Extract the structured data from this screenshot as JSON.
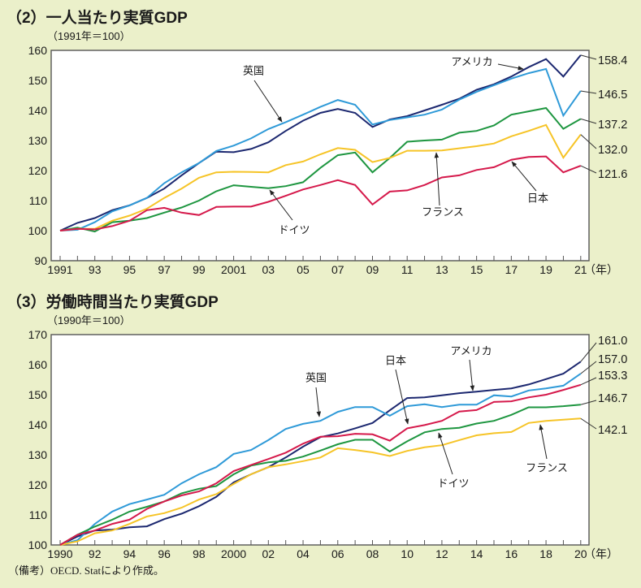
{
  "footer": {
    "note": "（備考）OECD. Statにより作成。"
  },
  "chart_data": [
    {
      "type": "line",
      "title": "（2）一人当たり実質GDP",
      "subtitle": "（1991年＝100）",
      "xlabel": "（年）",
      "ylabel": "",
      "x": [
        1991,
        1992,
        1993,
        1994,
        1995,
        1996,
        1997,
        1998,
        1999,
        2000,
        2001,
        2002,
        2003,
        2004,
        2005,
        2006,
        2007,
        2008,
        2009,
        2010,
        2011,
        2012,
        2013,
        2014,
        2015,
        2016,
        2017,
        2018,
        2019,
        2020,
        2021
      ],
      "xtick_values": [
        1991,
        1993,
        1995,
        1997,
        1999,
        2001,
        2003,
        2005,
        2007,
        2009,
        2011,
        2013,
        2015,
        2017,
        2019,
        2021
      ],
      "xtick_labels": [
        "1991",
        "93",
        "95",
        "97",
        "99",
        "2001",
        "03",
        "05",
        "07",
        "09",
        "11",
        "13",
        "15",
        "17",
        "19",
        "21"
      ],
      "ylim": [
        90,
        160
      ],
      "yticks": [
        90,
        100,
        110,
        120,
        130,
        140,
        150,
        160
      ],
      "grid": false,
      "legend": "inline annotations with arrows; end values labeled at right",
      "series": [
        {
          "name": "アメリカ",
          "color": "#1c2870",
          "end_label": "158.4",
          "values": [
            100,
            102.6,
            104.2,
            106.8,
            108.4,
            110.9,
            114.0,
            118.4,
            122.5,
            126.3,
            126.1,
            127.2,
            129.4,
            133.2,
            136.6,
            139.2,
            140.5,
            139.2,
            134.5,
            137.0,
            138.1,
            140.0,
            141.9,
            143.9,
            146.9,
            148.7,
            151.3,
            154.4,
            157.1,
            151.3,
            158.4
          ]
        },
        {
          "name": "英国",
          "color": "#2f9ad8",
          "end_label": "146.5",
          "values": [
            100,
            100.3,
            102.8,
            106.4,
            108.4,
            110.9,
            115.8,
            119.4,
            122.5,
            126.5,
            128.3,
            130.7,
            133.8,
            136.1,
            138.6,
            141.2,
            143.5,
            141.9,
            135.3,
            136.8,
            137.7,
            138.6,
            140.3,
            143.6,
            146.2,
            148.4,
            150.6,
            152.4,
            153.8,
            138.3,
            146.5
          ]
        },
        {
          "name": "ドイツ",
          "color": "#1e9640",
          "end_label": "137.2",
          "values": [
            100,
            101.0,
            99.7,
            102.8,
            103.3,
            104.2,
            106.0,
            107.7,
            110.0,
            113.1,
            115.1,
            114.6,
            114.1,
            114.8,
            116.1,
            120.9,
            125.1,
            126.0,
            119.4,
            124.2,
            129.6,
            130.0,
            130.3,
            132.6,
            133.2,
            135.0,
            138.6,
            139.7,
            140.8,
            133.9,
            137.2
          ]
        },
        {
          "name": "フランス",
          "color": "#f6c427",
          "end_label": "132.0",
          "values": [
            100,
            100.6,
            100.6,
            103.3,
            105.0,
            107.3,
            110.9,
            114.0,
            117.6,
            119.4,
            119.6,
            119.5,
            119.4,
            121.8,
            123.0,
            125.4,
            127.5,
            126.9,
            122.8,
            124.2,
            126.6,
            126.6,
            126.7,
            127.4,
            128.1,
            129.0,
            131.4,
            133.2,
            135.2,
            124.3,
            132.0
          ]
        },
        {
          "name": "日本",
          "color": "#d5194b",
          "end_label": "121.6",
          "values": [
            100,
            100.6,
            100.4,
            101.5,
            103.3,
            106.8,
            107.6,
            106.0,
            105.2,
            107.9,
            108.0,
            108.0,
            109.6,
            111.6,
            113.7,
            115.2,
            116.8,
            115.2,
            108.7,
            113.0,
            113.4,
            115.2,
            117.7,
            118.4,
            120.2,
            121.1,
            123.6,
            124.5,
            124.7,
            119.4,
            121.6
          ]
        }
      ]
    },
    {
      "type": "line",
      "title": "（3）労働時間当たり実質GDP",
      "subtitle": "（1990年＝100）",
      "xlabel": "（年）",
      "ylabel": "",
      "x": [
        1990,
        1991,
        1992,
        1993,
        1994,
        1995,
        1996,
        1997,
        1998,
        1999,
        2000,
        2001,
        2002,
        2003,
        2004,
        2005,
        2006,
        2007,
        2008,
        2009,
        2010,
        2011,
        2012,
        2013,
        2014,
        2015,
        2016,
        2017,
        2018,
        2019,
        2020
      ],
      "xtick_values": [
        1990,
        1992,
        1994,
        1996,
        1998,
        2000,
        2002,
        2004,
        2006,
        2008,
        2010,
        2012,
        2014,
        2016,
        2018,
        2020
      ],
      "xtick_labels": [
        "1990",
        "92",
        "94",
        "96",
        "98",
        "2000",
        "02",
        "04",
        "06",
        "08",
        "10",
        "12",
        "14",
        "16",
        "18",
        "20"
      ],
      "ylim": [
        100,
        170
      ],
      "yticks": [
        100,
        110,
        120,
        130,
        140,
        150,
        160,
        170
      ],
      "grid": false,
      "legend": "inline annotations with arrows; end values labeled at right",
      "series": [
        {
          "name": "アメリカ",
          "color": "#1c2870",
          "end_label": "161.0",
          "values": [
            100,
            102.8,
            104.8,
            105.1,
            105.9,
            106.2,
            108.6,
            110.4,
            112.9,
            116.0,
            120.8,
            123.5,
            125.9,
            129.1,
            132.7,
            135.9,
            137.1,
            138.8,
            140.6,
            144.8,
            148.9,
            149.1,
            149.8,
            150.5,
            151.0,
            151.6,
            152.1,
            153.4,
            155.2,
            157.0,
            161.0
          ]
        },
        {
          "name": "英国",
          "color": "#2f9ad8",
          "end_label": "157.0",
          "values": [
            100,
            101.6,
            107.0,
            111.1,
            113.6,
            115.1,
            116.7,
            120.5,
            123.5,
            125.9,
            130.3,
            131.6,
            134.9,
            138.6,
            140.3,
            141.3,
            144.3,
            145.9,
            145.9,
            143.0,
            146.2,
            146.8,
            145.9,
            146.7,
            146.7,
            149.8,
            149.4,
            151.4,
            152.1,
            153.0,
            157.0
          ]
        },
        {
          "name": "ドイツ",
          "color": "#1e9640",
          "end_label": "146.7",
          "values": [
            100,
            103.4,
            106.1,
            108.4,
            111.1,
            112.7,
            114.5,
            117.2,
            118.7,
            119.6,
            123.5,
            126.4,
            127.5,
            128.0,
            129.4,
            131.4,
            133.5,
            135.0,
            135.0,
            131.1,
            134.5,
            137.5,
            138.6,
            139.0,
            140.4,
            141.3,
            143.3,
            145.8,
            145.8,
            146.2,
            146.7
          ]
        },
        {
          "name": "フランス",
          "color": "#f6c427",
          "end_label": "142.1",
          "values": [
            100,
            101.2,
            103.9,
            104.8,
            107.0,
            109.5,
            110.6,
            112.4,
            115.1,
            116.9,
            120.3,
            123.5,
            125.9,
            126.8,
            127.9,
            129.1,
            132.2,
            131.6,
            130.8,
            129.6,
            131.3,
            132.5,
            133.2,
            134.9,
            136.5,
            137.2,
            137.6,
            140.6,
            141.3,
            141.7,
            142.1
          ]
        },
        {
          "name": "日本",
          "color": "#d5194b",
          "end_label": "153.3",
          "values": [
            100,
            103.4,
            104.8,
            107.0,
            108.4,
            112.0,
            114.5,
            116.5,
            117.8,
            120.5,
            124.6,
            126.6,
            128.6,
            130.7,
            133.7,
            136.0,
            136.2,
            137.0,
            136.8,
            134.7,
            138.8,
            139.9,
            141.3,
            144.4,
            144.9,
            147.6,
            147.8,
            149.1,
            150.0,
            151.6,
            153.3
          ]
        }
      ]
    }
  ]
}
